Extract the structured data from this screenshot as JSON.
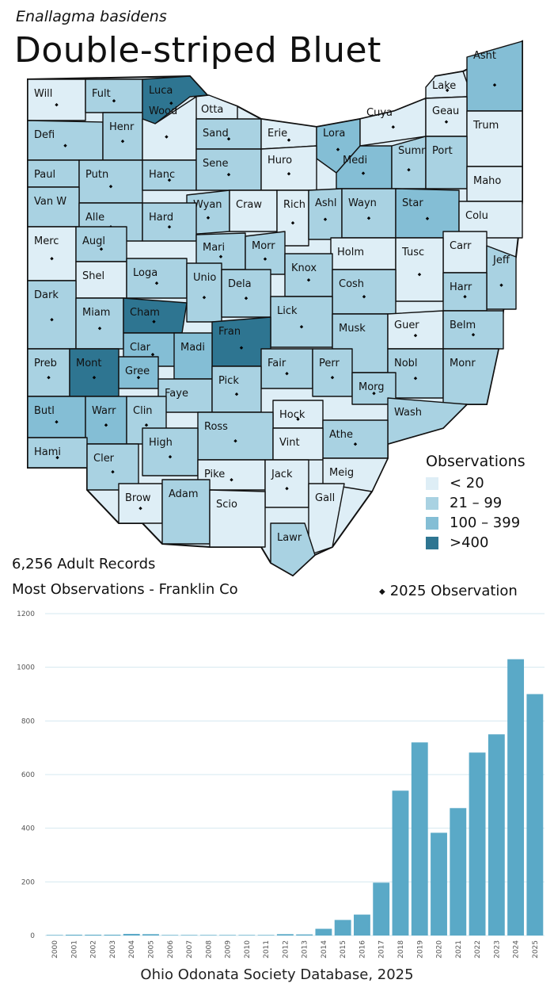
{
  "header": {
    "scientific_name": "Enallagma basidens",
    "common_name": "Double-striped Bluet"
  },
  "colors": {
    "lt20": "#deeef6",
    "r21_99": "#a9d2e2",
    "r100_399": "#84bed5",
    "gt400": "#2e7591",
    "bar": "#5aa9c7",
    "grid": "#d5e8f0",
    "border": "#111111"
  },
  "legend": {
    "title": "Observations",
    "items": [
      {
        "label": "< 20",
        "color_key": "lt20"
      },
      {
        "label": "21 – 99",
        "color_key": "r21_99"
      },
      {
        "label": "100 – 399",
        "color_key": "r100_399"
      },
      {
        "label": ">400",
        "color_key": "gt400"
      }
    ]
  },
  "summary": {
    "records": "6,256 Adult Records",
    "most": "Most Observations - Franklin Co",
    "obs_note": "2025 Observation",
    "obs_icon": "diamond-dot-icon"
  },
  "counties": [
    {
      "name": "Will",
      "cat": "lt20",
      "dot": true
    },
    {
      "name": "Fult",
      "cat": "r21_99",
      "dot": true
    },
    {
      "name": "Luca",
      "cat": "gt400",
      "dot": true
    },
    {
      "name": "Otta",
      "cat": "lt20",
      "dot": false
    },
    {
      "name": "Lake",
      "cat": "lt20",
      "dot": true
    },
    {
      "name": "Asht",
      "cat": "r100_399",
      "dot": true
    },
    {
      "name": "Defi",
      "cat": "r21_99",
      "dot": true
    },
    {
      "name": "Henr",
      "cat": "r21_99",
      "dot": true
    },
    {
      "name": "Wood",
      "cat": "lt20",
      "dot": true
    },
    {
      "name": "Sand",
      "cat": "r21_99",
      "dot": true
    },
    {
      "name": "Erie",
      "cat": "lt20",
      "dot": true
    },
    {
      "name": "Lora",
      "cat": "r100_399",
      "dot": true
    },
    {
      "name": "Cuya",
      "cat": "lt20",
      "dot": true
    },
    {
      "name": "Geau",
      "cat": "lt20",
      "dot": true
    },
    {
      "name": "Trum",
      "cat": "lt20",
      "dot": false
    },
    {
      "name": "Paul",
      "cat": "r21_99",
      "dot": false
    },
    {
      "name": "Putn",
      "cat": "r21_99",
      "dot": true
    },
    {
      "name": "Hanc",
      "cat": "r21_99",
      "dot": true
    },
    {
      "name": "Sene",
      "cat": "r21_99",
      "dot": true
    },
    {
      "name": "Huro",
      "cat": "lt20",
      "dot": true
    },
    {
      "name": "Medi",
      "cat": "r100_399",
      "dot": true
    },
    {
      "name": "Summ",
      "cat": "r21_99",
      "dot": true
    },
    {
      "name": "Port",
      "cat": "r21_99",
      "dot": false
    },
    {
      "name": "Maho",
      "cat": "lt20",
      "dot": false
    },
    {
      "name": "Van W",
      "cat": "r21_99",
      "dot": false
    },
    {
      "name": "Alle",
      "cat": "r21_99",
      "dot": true
    },
    {
      "name": "Wyan",
      "cat": "r21_99",
      "dot": true
    },
    {
      "name": "Craw",
      "cat": "lt20",
      "dot": false
    },
    {
      "name": "Rich",
      "cat": "lt20",
      "dot": true
    },
    {
      "name": "Ashl",
      "cat": "r21_99",
      "dot": true
    },
    {
      "name": "Wayn",
      "cat": "r21_99",
      "dot": true
    },
    {
      "name": "Star",
      "cat": "r100_399",
      "dot": true
    },
    {
      "name": "Colu",
      "cat": "lt20",
      "dot": false
    },
    {
      "name": "Hard",
      "cat": "r21_99",
      "dot": true
    },
    {
      "name": "Merc",
      "cat": "lt20",
      "dot": true
    },
    {
      "name": "Augl",
      "cat": "r21_99",
      "dot": true
    },
    {
      "name": "Mari",
      "cat": "r21_99",
      "dot": true
    },
    {
      "name": "Morr",
      "cat": "r21_99",
      "dot": true
    },
    {
      "name": "Holm",
      "cat": "lt20",
      "dot": false
    },
    {
      "name": "Carr",
      "cat": "lt20",
      "dot": false
    },
    {
      "name": "Tusc",
      "cat": "lt20",
      "dot": true
    },
    {
      "name": "Jeff",
      "cat": "r21_99",
      "dot": true
    },
    {
      "name": "Shel",
      "cat": "lt20",
      "dot": false
    },
    {
      "name": "Loga",
      "cat": "r21_99",
      "dot": true
    },
    {
      "name": "Unio",
      "cat": "r21_99",
      "dot": true
    },
    {
      "name": "Dela",
      "cat": "r21_99",
      "dot": true
    },
    {
      "name": "Knox",
      "cat": "r21_99",
      "dot": true
    },
    {
      "name": "Cosh",
      "cat": "r21_99",
      "dot": true
    },
    {
      "name": "Harr",
      "cat": "r21_99",
      "dot": true
    },
    {
      "name": "Dark",
      "cat": "r21_99",
      "dot": true
    },
    {
      "name": "Miam",
      "cat": "r21_99",
      "dot": true
    },
    {
      "name": "Cham",
      "cat": "gt400",
      "dot": true
    },
    {
      "name": "Lick",
      "cat": "r21_99",
      "dot": true
    },
    {
      "name": "Musk",
      "cat": "r21_99",
      "dot": false
    },
    {
      "name": "Guer",
      "cat": "lt20",
      "dot": true
    },
    {
      "name": "Belm",
      "cat": "r21_99",
      "dot": true
    },
    {
      "name": "Clar",
      "cat": "r100_399",
      "dot": true
    },
    {
      "name": "Fran",
      "cat": "gt400",
      "dot": true
    },
    {
      "name": "Preb",
      "cat": "r21_99",
      "dot": true
    },
    {
      "name": "Mont",
      "cat": "gt400",
      "dot": true
    },
    {
      "name": "Gree",
      "cat": "r100_399",
      "dot": true
    },
    {
      "name": "Madi",
      "cat": "r100_399",
      "dot": false
    },
    {
      "name": "Fair",
      "cat": "r21_99",
      "dot": true
    },
    {
      "name": "Perr",
      "cat": "r21_99",
      "dot": true
    },
    {
      "name": "Nobl",
      "cat": "r21_99",
      "dot": true
    },
    {
      "name": "Monr",
      "cat": "r21_99",
      "dot": false
    },
    {
      "name": "Faye",
      "cat": "r21_99",
      "dot": false
    },
    {
      "name": "Pick",
      "cat": "r21_99",
      "dot": true
    },
    {
      "name": "Morg",
      "cat": "r21_99",
      "dot": true
    },
    {
      "name": "Butl",
      "cat": "r100_399",
      "dot": true
    },
    {
      "name": "Warr",
      "cat": "r100_399",
      "dot": true
    },
    {
      "name": "Clin",
      "cat": "r21_99",
      "dot": true
    },
    {
      "name": "Hock",
      "cat": "lt20",
      "dot": true
    },
    {
      "name": "Wash",
      "cat": "r21_99",
      "dot": false
    },
    {
      "name": "Ross",
      "cat": "r21_99",
      "dot": true
    },
    {
      "name": "Athe",
      "cat": "r21_99",
      "dot": true
    },
    {
      "name": "High",
      "cat": "r21_99",
      "dot": true
    },
    {
      "name": "Vint",
      "cat": "lt20",
      "dot": false
    },
    {
      "name": "Hami",
      "cat": "r21_99",
      "dot": true
    },
    {
      "name": "Cler",
      "cat": "r21_99",
      "dot": true
    },
    {
      "name": "Meig",
      "cat": "lt20",
      "dot": false
    },
    {
      "name": "Pike",
      "cat": "lt20",
      "dot": true
    },
    {
      "name": "Jack",
      "cat": "lt20",
      "dot": true
    },
    {
      "name": "Brow",
      "cat": "lt20",
      "dot": true
    },
    {
      "name": "Adam",
      "cat": "r21_99",
      "dot": false
    },
    {
      "name": "Gall",
      "cat": "lt20",
      "dot": false
    },
    {
      "name": "Scio",
      "cat": "lt20",
      "dot": false
    },
    {
      "name": "Lawr",
      "cat": "r21_99",
      "dot": false
    }
  ],
  "chart_data": {
    "type": "bar",
    "title": "",
    "xlabel": "",
    "ylabel": "",
    "categories": [
      "2000",
      "2001",
      "2002",
      "2003",
      "2004",
      "2005",
      "2006",
      "2007",
      "2008",
      "2009",
      "2010",
      "2011",
      "2012",
      "2013",
      "2014",
      "2015",
      "2016",
      "2017",
      "2018",
      "2019",
      "2020",
      "2021",
      "2022",
      "2023",
      "2024",
      "2025"
    ],
    "values": [
      2,
      3,
      3,
      3,
      6,
      5,
      2,
      2,
      2,
      2,
      2,
      2,
      5,
      4,
      25,
      58,
      78,
      197,
      540,
      720,
      383,
      475,
      682,
      750,
      1030,
      900
    ],
    "ylim": [
      0,
      1200
    ],
    "yticks": [
      0,
      200,
      400,
      600,
      800,
      1000,
      1200
    ],
    "grid": true
  },
  "footer": {
    "source": "Ohio Odonata Society Database, 2025"
  }
}
